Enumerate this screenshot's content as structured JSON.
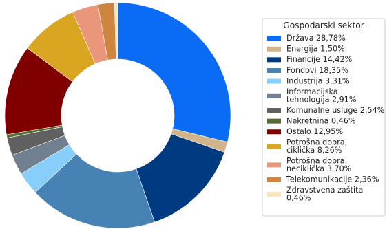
{
  "chart_data": {
    "type": "pie",
    "donut": true,
    "start_angle_deg": 90,
    "direction": "clockwise",
    "legend": {
      "title": "Gospodarski sektor",
      "placement": "right"
    },
    "slices": [
      {
        "label": "Država",
        "value": 28.78,
        "display": [
          "Država 28,78%"
        ],
        "color": "#0a6cf5"
      },
      {
        "label": "Energija",
        "value": 1.5,
        "display": [
          "Energija 1,50%"
        ],
        "color": "#d2b48c"
      },
      {
        "label": "Financije",
        "value": 14.42,
        "display": [
          "Financije 14,42%"
        ],
        "color": "#003a80"
      },
      {
        "label": "Fondovi",
        "value": 18.35,
        "display": [
          "Fondovi 18,35%"
        ],
        "color": "#4682b4"
      },
      {
        "label": "Industrija",
        "value": 3.31,
        "display": [
          "Industrija 3,31%"
        ],
        "color": "#87cefa"
      },
      {
        "label": "Informacijska tehnologija",
        "value": 2.91,
        "display": [
          "Informacijska",
          "tehnologija 2,91%"
        ],
        "color": "#708090"
      },
      {
        "label": "Komunalne usluge",
        "value": 2.54,
        "display": [
          "Komunalne usluge 2,54%"
        ],
        "color": "#606060"
      },
      {
        "label": "Nekretnina",
        "value": 0.46,
        "display": [
          "Nekretnina 0,46%"
        ],
        "color": "#556b2f"
      },
      {
        "label": "Ostalo",
        "value": 12.95,
        "display": [
          "Ostalo 12,95%"
        ],
        "color": "#800000"
      },
      {
        "label": "Potrošna dobra, ciklička",
        "value": 8.26,
        "display": [
          "Potrošna dobra,",
          "ciklička 8,26%"
        ],
        "color": "#daa520"
      },
      {
        "label": "Potrošna dobra, neciklička",
        "value": 3.7,
        "display": [
          "Potrošna dobra,",
          "neciklička 3,70%"
        ],
        "color": "#e9967a"
      },
      {
        "label": "Telekomunikacije",
        "value": 2.36,
        "display": [
          "Telekomunikacije 2,36%"
        ],
        "color": "#cd853f"
      },
      {
        "label": "Zdravstvena zaštita",
        "value": 0.46,
        "display": [
          "Zdravstvena zaštita",
          "0,46%"
        ],
        "color": "#ffe4b5"
      }
    ]
  }
}
